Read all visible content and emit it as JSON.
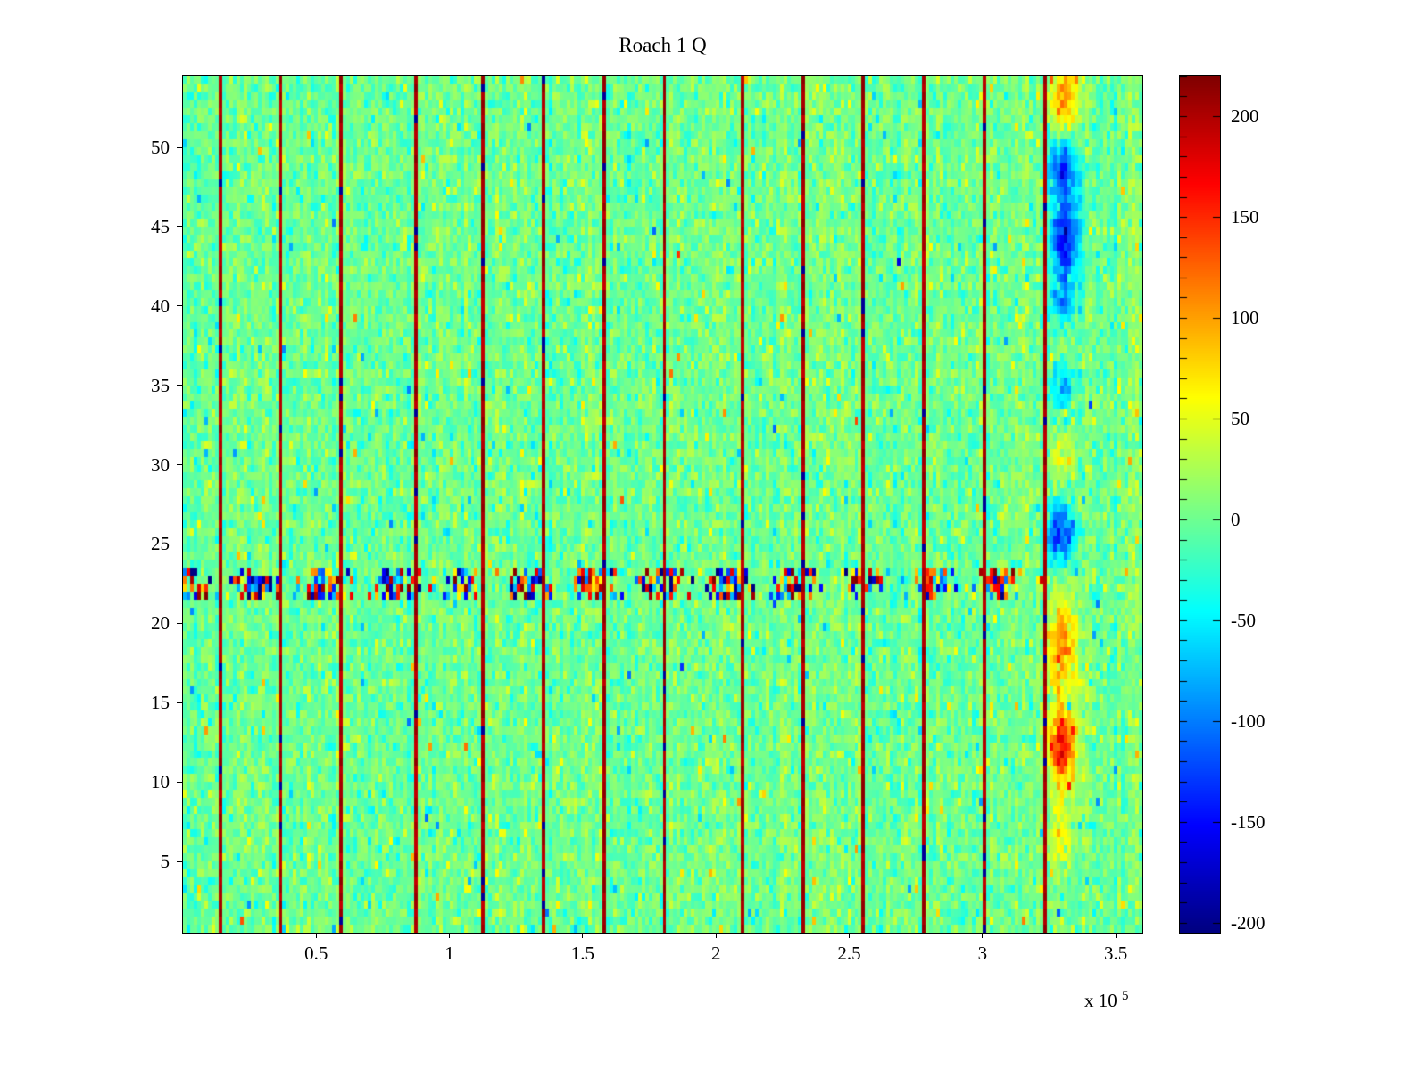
{
  "chart_data": {
    "type": "heatmap",
    "title": "Roach 1 Q",
    "xlabel": "",
    "ylabel": "",
    "xlim": [
      0,
      3.6
    ],
    "x_multiplier_base": "x 10",
    "x_multiplier_exp": "5",
    "x_ticks": [
      0.5,
      1,
      1.5,
      2,
      2.5,
      3,
      3.5
    ],
    "x_tick_labels": [
      "0.5",
      "1",
      "1.5",
      "2",
      "2.5",
      "3",
      "3.5"
    ],
    "ylim": [
      0.5,
      54.5
    ],
    "n_rows": 54,
    "y_ticks": [
      5,
      10,
      15,
      20,
      25,
      30,
      35,
      40,
      45,
      50
    ],
    "y_tick_labels": [
      "5",
      "10",
      "15",
      "20",
      "25",
      "30",
      "35",
      "40",
      "45",
      "50"
    ],
    "clim": [
      -205,
      220
    ],
    "colormap": "jet",
    "colorbar_position": "right",
    "colorbar_ticks": [
      200,
      150,
      100,
      50,
      0,
      -50,
      -100,
      -150,
      -200
    ],
    "colorbar_tick_labels": [
      "200",
      "150",
      "100",
      "50",
      "0",
      "-50",
      "-100",
      "-150",
      "-200"
    ],
    "colorbar_minor_tick_step": 10,
    "background_noise_std": 17,
    "seed": 11,
    "vertical_markers_x": [
      0.13,
      0.36,
      0.59,
      0.87,
      1.12,
      1.34,
      1.57,
      1.8,
      2.09,
      2.32,
      2.55,
      2.77,
      3.0,
      3.23
    ],
    "vertical_marker_value": 215,
    "noise_band": {
      "y_center": 22.4,
      "y_halfwidth": 1.1,
      "amplitude": 225,
      "x_range": [
        0,
        3.24
      ]
    },
    "anomalies": [
      {
        "x": 3.31,
        "y": 53.2,
        "sx": 0.04,
        "sy": 1.4,
        "amp": 115
      },
      {
        "x": 3.3,
        "y": 48.8,
        "sx": 0.035,
        "sy": 1.1,
        "amp": -135
      },
      {
        "x": 3.31,
        "y": 44.3,
        "sx": 0.04,
        "sy": 2.0,
        "amp": -150
      },
      {
        "x": 3.3,
        "y": 40.3,
        "sx": 0.03,
        "sy": 0.8,
        "amp": -85
      },
      {
        "x": 3.3,
        "y": 34.8,
        "sx": 0.03,
        "sy": 0.9,
        "amp": -75
      },
      {
        "x": 3.29,
        "y": 25.6,
        "sx": 0.035,
        "sy": 1.3,
        "amp": -145
      },
      {
        "x": 3.3,
        "y": 30.5,
        "sx": 0.04,
        "sy": 1.0,
        "amp": 45
      },
      {
        "x": 3.3,
        "y": 18.6,
        "sx": 0.04,
        "sy": 2.0,
        "amp": 85
      },
      {
        "x": 3.3,
        "y": 12.1,
        "sx": 0.035,
        "sy": 1.4,
        "amp": 155
      },
      {
        "x": 3.3,
        "y": 6.8,
        "sx": 0.035,
        "sy": 1.6,
        "amp": 55
      },
      {
        "x": 3.3,
        "y": 16.0,
        "sx": 0.04,
        "sy": 5.0,
        "amp": 35
      }
    ]
  }
}
